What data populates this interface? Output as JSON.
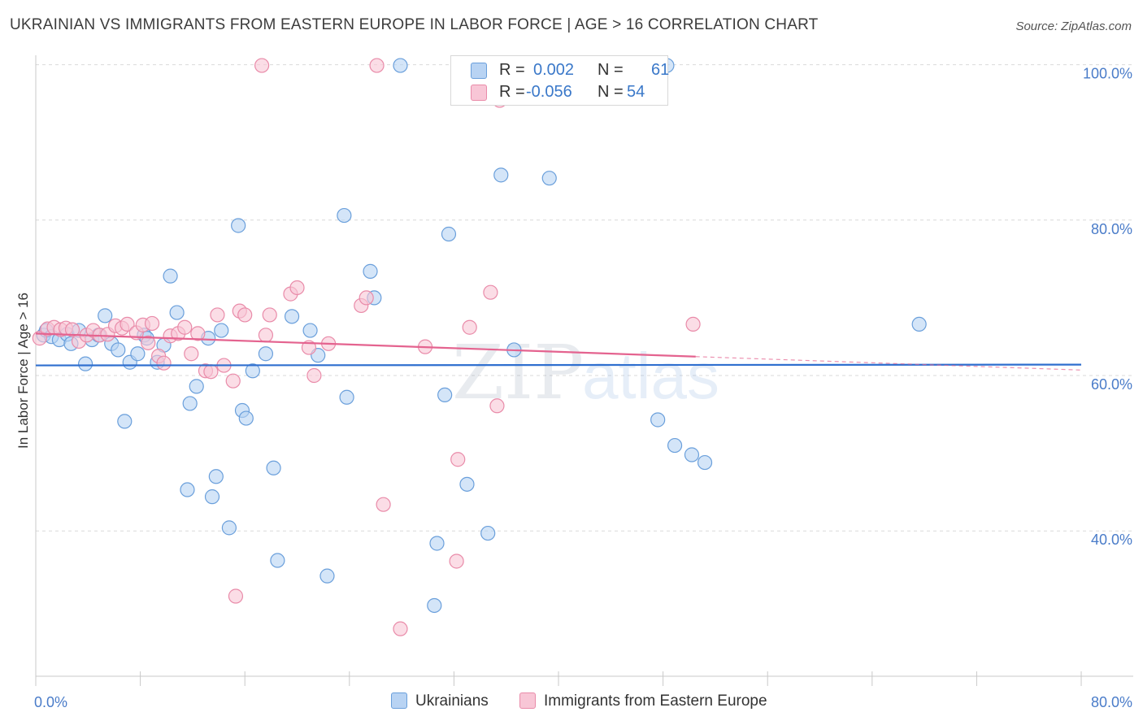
{
  "title": "UKRAINIAN VS IMMIGRANTS FROM EASTERN EUROPE IN LABOR FORCE | AGE > 16 CORRELATION CHART",
  "source": "Source: ZipAtlas.com",
  "watermark": {
    "zip": "ZIP",
    "atlas": "atlas"
  },
  "colors": {
    "blue_fill": "#b8d3f3",
    "blue_stroke": "#6a9fdb",
    "blue_line": "#2f6fcf",
    "pink_fill": "#f8c6d6",
    "pink_stroke": "#e98ba9",
    "pink_line": "#e4638f",
    "grid": "#d9d9d9",
    "axis_label": "#4a7cc9"
  },
  "legend": {
    "rows": [
      {
        "r_label": "R =",
        "r_value": "0.002",
        "n_label": "N =",
        "n_value": "61"
      },
      {
        "r_label": "R =",
        "r_value": "-0.056",
        "n_label": "N =",
        "n_value": "54"
      }
    ]
  },
  "bottom_legend": {
    "series1": "Ukrainians",
    "series2": "Immigrants from Eastern Europe"
  },
  "chart_data": {
    "type": "scatter",
    "title": "UKRAINIAN VS IMMIGRANTS FROM EASTERN EUROPE IN LABOR FORCE | AGE > 16 CORRELATION CHART",
    "xlabel": "",
    "ylabel": "In Labor Force | Age > 16",
    "xlim": [
      0,
      80
    ],
    "ylim": [
      20,
      102
    ],
    "x_tick_labels": [
      "0.0%",
      "80.0%"
    ],
    "y_ticks": [
      40,
      60,
      80,
      100
    ],
    "y_tick_labels": [
      "40.0%",
      "60.0%",
      "80.0%",
      "100.0%"
    ],
    "grid": true,
    "series": [
      {
        "name": "Ukrainians",
        "color": "#6a9fdb",
        "trend": {
          "x": [
            0,
            80
          ],
          "y": [
            61.3,
            61.4
          ],
          "solid_to": 80
        },
        "points": [
          [
            0.6,
            65.2
          ],
          [
            0.8,
            65.8
          ],
          [
            1.2,
            65.0
          ],
          [
            1.8,
            64.6
          ],
          [
            2.4,
            65.3
          ],
          [
            2.7,
            64.1
          ],
          [
            3.3,
            65.8
          ],
          [
            3.8,
            61.5
          ],
          [
            4.3,
            64.6
          ],
          [
            4.8,
            65.2
          ],
          [
            5.3,
            67.7
          ],
          [
            5.8,
            64.1
          ],
          [
            6.3,
            63.3
          ],
          [
            6.8,
            54.1
          ],
          [
            7.2,
            61.7
          ],
          [
            7.8,
            62.8
          ],
          [
            8.3,
            65.2
          ],
          [
            8.5,
            64.8
          ],
          [
            9.3,
            61.7
          ],
          [
            9.8,
            63.9
          ],
          [
            10.3,
            72.8
          ],
          [
            10.8,
            68.1
          ],
          [
            11.6,
            45.3
          ],
          [
            11.8,
            56.4
          ],
          [
            12.3,
            58.6
          ],
          [
            13.2,
            64.8
          ],
          [
            13.5,
            44.4
          ],
          [
            13.8,
            47.0
          ],
          [
            14.2,
            65.8
          ],
          [
            14.8,
            40.4
          ],
          [
            15.5,
            79.3
          ],
          [
            15.8,
            55.5
          ],
          [
            16.1,
            54.5
          ],
          [
            16.6,
            60.6
          ],
          [
            17.6,
            62.8
          ],
          [
            18.2,
            48.1
          ],
          [
            18.5,
            36.2
          ],
          [
            19.6,
            67.6
          ],
          [
            21.0,
            65.8
          ],
          [
            21.6,
            62.6
          ],
          [
            22.3,
            34.2
          ],
          [
            23.6,
            80.6
          ],
          [
            23.8,
            57.2
          ],
          [
            25.6,
            73.4
          ],
          [
            25.9,
            70.0
          ],
          [
            27.9,
            99.9
          ],
          [
            30.5,
            30.4
          ],
          [
            30.7,
            38.4
          ],
          [
            31.3,
            57.5
          ],
          [
            31.6,
            78.2
          ],
          [
            33.0,
            46.0
          ],
          [
            34.6,
            39.7
          ],
          [
            35.6,
            85.8
          ],
          [
            36.6,
            63.3
          ],
          [
            39.3,
            85.4
          ],
          [
            47.6,
            54.3
          ],
          [
            48.3,
            99.9
          ],
          [
            48.9,
            51.0
          ],
          [
            50.2,
            49.8
          ],
          [
            51.2,
            48.8
          ],
          [
            67.6,
            66.6
          ]
        ]
      },
      {
        "name": "Immigrants from Eastern Europe",
        "color": "#e98ba9",
        "trend": {
          "x": [
            0,
            80
          ],
          "y": [
            65.4,
            60.7
          ],
          "solid_to": 50.5
        },
        "points": [
          [
            0.3,
            64.8
          ],
          [
            0.9,
            66.0
          ],
          [
            1.4,
            66.2
          ],
          [
            1.9,
            65.9
          ],
          [
            2.3,
            66.1
          ],
          [
            2.8,
            65.9
          ],
          [
            3.3,
            64.4
          ],
          [
            3.9,
            65.2
          ],
          [
            4.4,
            65.8
          ],
          [
            4.9,
            65.2
          ],
          [
            5.5,
            65.3
          ],
          [
            6.1,
            66.4
          ],
          [
            6.6,
            66.1
          ],
          [
            7.0,
            66.6
          ],
          [
            7.7,
            65.5
          ],
          [
            8.2,
            66.5
          ],
          [
            8.6,
            64.2
          ],
          [
            8.9,
            66.7
          ],
          [
            9.4,
            62.5
          ],
          [
            9.8,
            61.6
          ],
          [
            10.3,
            65.1
          ],
          [
            10.9,
            65.4
          ],
          [
            11.4,
            66.2
          ],
          [
            11.9,
            62.8
          ],
          [
            12.4,
            65.4
          ],
          [
            13.0,
            60.6
          ],
          [
            13.4,
            60.5
          ],
          [
            13.9,
            67.8
          ],
          [
            14.4,
            61.3
          ],
          [
            15.1,
            59.3
          ],
          [
            15.3,
            31.6
          ],
          [
            15.6,
            68.3
          ],
          [
            16.0,
            67.8
          ],
          [
            17.3,
            99.9
          ],
          [
            17.6,
            65.2
          ],
          [
            17.9,
            67.8
          ],
          [
            19.5,
            70.5
          ],
          [
            20.0,
            71.3
          ],
          [
            20.9,
            63.6
          ],
          [
            21.3,
            60.0
          ],
          [
            22.4,
            64.1
          ],
          [
            24.9,
            69.0
          ],
          [
            25.3,
            70.0
          ],
          [
            26.1,
            99.9
          ],
          [
            26.6,
            43.4
          ],
          [
            27.9,
            27.4
          ],
          [
            29.8,
            63.7
          ],
          [
            32.2,
            36.1
          ],
          [
            32.3,
            49.2
          ],
          [
            33.2,
            66.2
          ],
          [
            34.8,
            70.7
          ],
          [
            35.3,
            56.1
          ],
          [
            35.5,
            95.4
          ],
          [
            50.3,
            66.6
          ]
        ]
      }
    ]
  }
}
